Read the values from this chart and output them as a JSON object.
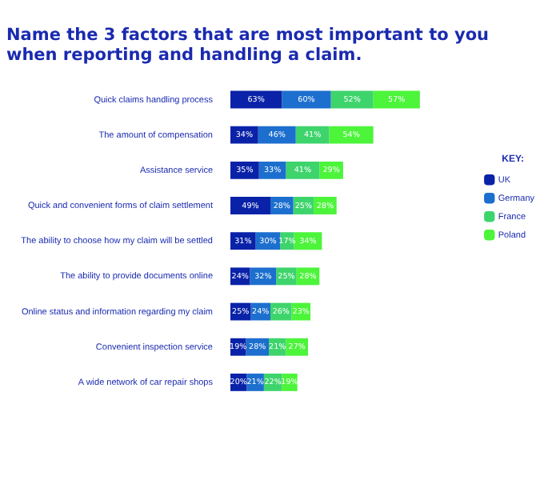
{
  "chart_data": {
    "type": "bar",
    "orientation": "horizontal",
    "stacked": true,
    "title": [
      "Name the 3 factors that are most important to you",
      "when reporting and handling a claim."
    ],
    "categories": [
      "Quick claims handling process",
      "The amount of compensation",
      "Assistance service",
      "Quick and convenient forms of claim settlement",
      "The ability to choose how my claim will be settled",
      "The ability to provide documents online",
      "Online status and information regarding my claim",
      "Convenient inspection service",
      "A wide network of car repair shops"
    ],
    "series": [
      {
        "name": "UK",
        "color": "#0a22a8",
        "values": [
          63,
          34,
          35,
          49,
          31,
          24,
          25,
          19,
          20
        ],
        "value_labels": [
          "63%",
          "34%",
          "35%",
          "49%",
          "31%",
          "24%",
          "25%",
          "19%",
          "20%"
        ]
      },
      {
        "name": "Germany",
        "color": "#1c6fce",
        "values": [
          60,
          46,
          33,
          28,
          30,
          32,
          24,
          28,
          21
        ],
        "value_labels": [
          "60%",
          "46%",
          "33%",
          "28%",
          "30%",
          "32%",
          "24%",
          "28%",
          "21%"
        ]
      },
      {
        "name": "France",
        "color": "#3ed46c",
        "values": [
          52,
          41,
          41,
          25,
          17,
          25,
          26,
          21,
          22
        ],
        "value_labels": [
          "52%",
          "41%",
          "41%",
          "25%",
          "17%",
          "25%",
          "26%",
          "21%",
          "22%"
        ]
      },
      {
        "name": "Poland",
        "color": "#4cf43a",
        "values": [
          57,
          54,
          29,
          28,
          34,
          28,
          23,
          27,
          19
        ],
        "value_labels": [
          "57%",
          "54%",
          "29%",
          "28%",
          "34%",
          "28%",
          "23%",
          "27%",
          "19%"
        ]
      }
    ],
    "legend": "right",
    "legend_title": "KEY:",
    "tick_labels": "y"
  }
}
